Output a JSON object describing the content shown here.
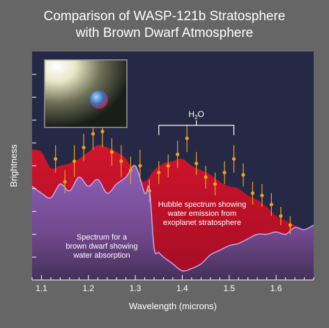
{
  "chart_data": {
    "type": "area",
    "title": [
      "Comparison of WASP-121b Stratosphere",
      "with Brown Dwarf Atmosphere"
    ],
    "xlabel": "Wavelength (microns)",
    "ylabel": "Brightness",
    "xlim": [
      1.08,
      1.68
    ],
    "ylim": [
      0,
      1
    ],
    "x_ticks": [
      1.1,
      1.2,
      1.3,
      1.4,
      1.5,
      1.6
    ],
    "x_tick_labels": [
      "1.1",
      "1.2",
      "1.3",
      "1.4",
      "1.5",
      "1.6"
    ],
    "grid": false,
    "series": [
      {
        "role": "exoplanet-spectrum",
        "color": "#c9102a",
        "x": [
          1.08,
          1.1,
          1.12,
          1.14,
          1.16,
          1.18,
          1.2,
          1.22,
          1.24,
          1.26,
          1.28,
          1.3,
          1.32,
          1.34,
          1.36,
          1.38,
          1.4,
          1.42,
          1.44,
          1.46,
          1.48,
          1.5,
          1.52,
          1.54,
          1.56,
          1.58,
          1.6,
          1.62,
          1.64,
          1.66,
          1.68
        ],
        "values": [
          0.57,
          0.56,
          0.49,
          0.5,
          0.51,
          0.53,
          0.56,
          0.59,
          0.58,
          0.56,
          0.53,
          0.46,
          0.43,
          0.48,
          0.51,
          0.52,
          0.53,
          0.5,
          0.48,
          0.46,
          0.43,
          0.41,
          0.4,
          0.37,
          0.35,
          0.32,
          0.28,
          0.26,
          0.24,
          0.22,
          0.22
        ]
      },
      {
        "role": "brown-dwarf-spectrum",
        "color": "#b088d6",
        "x": [
          1.08,
          1.1,
          1.12,
          1.14,
          1.16,
          1.18,
          1.2,
          1.22,
          1.24,
          1.26,
          1.28,
          1.3,
          1.32,
          1.33,
          1.34,
          1.35,
          1.36,
          1.38,
          1.4,
          1.42,
          1.44,
          1.46,
          1.48,
          1.5,
          1.52,
          1.54,
          1.56,
          1.58,
          1.6,
          1.62,
          1.64,
          1.66,
          1.68
        ],
        "values": [
          0.41,
          0.38,
          0.36,
          0.42,
          0.39,
          0.45,
          0.41,
          0.44,
          0.38,
          0.42,
          0.45,
          0.5,
          0.38,
          0.4,
          0.14,
          0.12,
          0.1,
          0.07,
          0.04,
          0.05,
          0.07,
          0.11,
          0.13,
          0.15,
          0.16,
          0.18,
          0.2,
          0.2,
          0.21,
          0.2,
          0.23,
          0.22,
          0.24
        ]
      }
    ],
    "data_points": {
      "color": "#f0a020",
      "points": [
        {
          "x": 1.13,
          "y": 0.53,
          "err": 0.06
        },
        {
          "x": 1.15,
          "y": 0.43,
          "err": 0.05
        },
        {
          "x": 1.17,
          "y": 0.52,
          "err": 0.07
        },
        {
          "x": 1.19,
          "y": 0.58,
          "err": 0.06
        },
        {
          "x": 1.21,
          "y": 0.64,
          "err": 0.07
        },
        {
          "x": 1.23,
          "y": 0.65,
          "err": 0.07
        },
        {
          "x": 1.25,
          "y": 0.56,
          "err": 0.06
        },
        {
          "x": 1.27,
          "y": 0.52,
          "err": 0.07
        },
        {
          "x": 1.29,
          "y": 0.48,
          "err": 0.06
        },
        {
          "x": 1.31,
          "y": 0.5,
          "err": 0.07
        },
        {
          "x": 1.33,
          "y": 0.39,
          "err": 0.05
        },
        {
          "x": 1.35,
          "y": 0.47,
          "err": 0.05
        },
        {
          "x": 1.37,
          "y": 0.5,
          "err": 0.05
        },
        {
          "x": 1.39,
          "y": 0.55,
          "err": 0.06
        },
        {
          "x": 1.41,
          "y": 0.62,
          "err": 0.06
        },
        {
          "x": 1.43,
          "y": 0.51,
          "err": 0.05
        },
        {
          "x": 1.45,
          "y": 0.45,
          "err": 0.05
        },
        {
          "x": 1.47,
          "y": 0.42,
          "err": 0.05
        },
        {
          "x": 1.49,
          "y": 0.47,
          "err": 0.05
        },
        {
          "x": 1.51,
          "y": 0.53,
          "err": 0.06
        },
        {
          "x": 1.53,
          "y": 0.46,
          "err": 0.05
        },
        {
          "x": 1.55,
          "y": 0.38,
          "err": 0.05
        },
        {
          "x": 1.57,
          "y": 0.37,
          "err": 0.05
        },
        {
          "x": 1.59,
          "y": 0.33,
          "err": 0.05
        },
        {
          "x": 1.61,
          "y": 0.28,
          "err": 0.04
        },
        {
          "x": 1.63,
          "y": 0.24,
          "err": 0.04
        }
      ]
    },
    "annotations": {
      "h2o_label": "H",
      "h2o_sub": "2",
      "h2o_tail": "O",
      "h2o_bracket": [
        1.35,
        1.51
      ],
      "exoplanet_text": [
        "Hubble spectrum showing",
        "water emission from",
        "exoplanet stratosphere"
      ],
      "brown_dwarf_text": [
        "Spectrum for a",
        "brown dwarf showing",
        "water absorption"
      ]
    },
    "colors": {
      "plot_background": "#252945",
      "page_background": "#666666",
      "tick_color": "#ffffff"
    }
  }
}
